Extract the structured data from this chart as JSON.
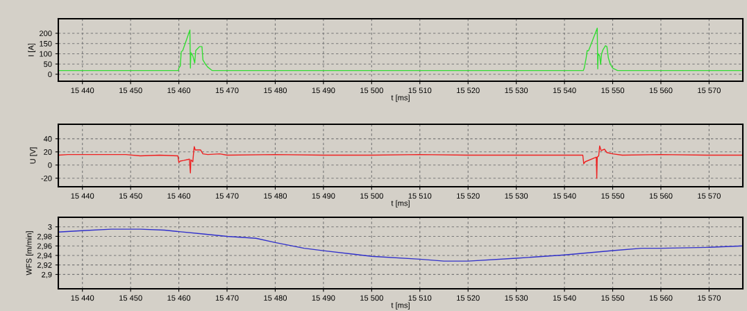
{
  "chart_data": [
    {
      "type": "line",
      "ylabel": "I [A]",
      "xlabel": "t [ms]",
      "xlim": [
        15435,
        15577
      ],
      "ylim": [
        -34,
        271
      ],
      "xticks": [
        {
          "value": 15440,
          "label": "15 440"
        },
        {
          "value": 15450,
          "label": "15 450"
        },
        {
          "value": 15460,
          "label": "15 460"
        },
        {
          "value": 15470,
          "label": "15 470"
        },
        {
          "value": 15480,
          "label": "15 480"
        },
        {
          "value": 15490,
          "label": "15 490"
        },
        {
          "value": 15500,
          "label": "15 500"
        },
        {
          "value": 15510,
          "label": "15 510"
        },
        {
          "value": 15520,
          "label": "15 520"
        },
        {
          "value": 15530,
          "label": "15 530"
        },
        {
          "value": 15540,
          "label": "15 540"
        },
        {
          "value": 15550,
          "label": "15 550"
        },
        {
          "value": 15560,
          "label": "15 560"
        },
        {
          "value": 15570,
          "label": "15 570"
        }
      ],
      "yticks": [
        0,
        50,
        100,
        150,
        200
      ],
      "grid": true,
      "line_style": "solid",
      "series": [
        {
          "color": "#33dd33",
          "x": [
            15435,
            15459.9,
            15460.0,
            15460.3,
            15460.5,
            15460.8,
            15462.3,
            15462.4,
            15462.5,
            15462.9,
            15463.3,
            15463.5,
            15463.9,
            15464.3,
            15464.8,
            15465.0,
            15465.5,
            15466.0,
            15466.8,
            15467.0,
            15543.9,
            15544.1,
            15544.5,
            15544.7,
            15545.0,
            15546.8,
            15546.9,
            15547.0,
            15547.3,
            15547.5,
            15547.7,
            15548.0,
            15548.5,
            15548.8,
            15549.1,
            15549.5,
            15550.0,
            15551.0,
            15577
          ],
          "values": [
            18,
            18,
            30,
            40,
            110,
            115,
            216,
            30,
            105,
            90,
            55,
            115,
            125,
            135,
            135,
            70,
            50,
            35,
            20,
            18,
            18,
            30,
            80,
            115,
            115,
            225,
            26,
            100,
            90,
            48,
            100,
            120,
            139,
            135,
            80,
            50,
            30,
            18,
            18
          ]
        }
      ]
    },
    {
      "type": "line",
      "ylabel": "U [V]",
      "xlabel": "t [ms]",
      "xlim": [
        15435,
        15577
      ],
      "ylim": [
        -33,
        62
      ],
      "xticks": [
        {
          "value": 15440,
          "label": "15 440"
        },
        {
          "value": 15450,
          "label": "15 450"
        },
        {
          "value": 15460,
          "label": "15 460"
        },
        {
          "value": 15470,
          "label": "15 470"
        },
        {
          "value": 15480,
          "label": "15 480"
        },
        {
          "value": 15490,
          "label": "15 490"
        },
        {
          "value": 15500,
          "label": "15 500"
        },
        {
          "value": 15510,
          "label": "15 510"
        },
        {
          "value": 15520,
          "label": "15 520"
        },
        {
          "value": 15530,
          "label": "15 530"
        },
        {
          "value": 15540,
          "label": "15 540"
        },
        {
          "value": 15550,
          "label": "15 550"
        },
        {
          "value": 15560,
          "label": "15 560"
        },
        {
          "value": 15570,
          "label": "15 570"
        }
      ],
      "yticks": [
        -20,
        0,
        20,
        40
      ],
      "grid": true,
      "line_style": "solid",
      "series": [
        {
          "color": "#ee2020",
          "x": [
            15435,
            15437,
            15449,
            15452,
            15456,
            15459.8,
            15460.0,
            15460.3,
            15461.0,
            15462.2,
            15462.4,
            15462.5,
            15462.9,
            15463.1,
            15463.2,
            15463.4,
            15464.5,
            15465.0,
            15466.0,
            15468.5,
            15470,
            15480,
            15490,
            15500,
            15510,
            15520,
            15530,
            15543.8,
            15544.0,
            15544.3,
            15546.6,
            15546.7,
            15546.8,
            15547.1,
            15547.3,
            15547.6,
            15548.3,
            15548.8,
            15550,
            15552,
            15560,
            15570,
            15577
          ],
          "values": [
            15,
            16,
            16,
            14,
            15,
            14,
            4,
            6,
            7,
            9,
            -12,
            8,
            5,
            22,
            28,
            23,
            23,
            17,
            16,
            17,
            15,
            16,
            15,
            15,
            16,
            15,
            15,
            15,
            2,
            5,
            12,
            -20,
            12,
            14,
            29,
            22,
            24,
            19,
            17,
            15,
            16,
            15,
            15
          ]
        }
      ]
    },
    {
      "type": "line",
      "ylabel": "WFS [m/min]",
      "xlabel": "t [ms]",
      "xlim": [
        15435,
        15577
      ],
      "ylim": [
        2.87,
        3.02
      ],
      "xticks": [
        {
          "value": 15440,
          "label": "15 440"
        },
        {
          "value": 15450,
          "label": "15 450"
        },
        {
          "value": 15460,
          "label": "15 460"
        },
        {
          "value": 15470,
          "label": "15 470"
        },
        {
          "value": 15480,
          "label": "15 480"
        },
        {
          "value": 15490,
          "label": "15 490"
        },
        {
          "value": 15500,
          "label": "15 500"
        },
        {
          "value": 15510,
          "label": "15 510"
        },
        {
          "value": 15520,
          "label": "15 520"
        },
        {
          "value": 15530,
          "label": "15 530"
        },
        {
          "value": 15540,
          "label": "15 540"
        },
        {
          "value": 15550,
          "label": "15 550"
        },
        {
          "value": 15560,
          "label": "15 560"
        },
        {
          "value": 15570,
          "label": "15 570"
        }
      ],
      "yticks": [
        {
          "value": 2.9,
          "label": "2,9"
        },
        {
          "value": 2.92,
          "label": "2,92"
        },
        {
          "value": 2.94,
          "label": "2,94"
        },
        {
          "value": 2.96,
          "label": "2,96"
        },
        {
          "value": 2.98,
          "label": "2,98"
        },
        {
          "value": 3,
          "label": "3"
        }
      ],
      "grid": true,
      "line_style": "solid",
      "series": [
        {
          "color": "#3030cc",
          "x": [
            15435,
            15440,
            15446,
            15452,
            15457,
            15460,
            15465,
            15470,
            15476,
            15480,
            15486,
            15490,
            15500,
            15510,
            15515,
            15520,
            15530,
            15540,
            15550,
            15556,
            15560,
            15570,
            15577
          ],
          "values": [
            2.989,
            2.992,
            2.995,
            2.995,
            2.993,
            2.99,
            2.985,
            2.98,
            2.976,
            2.967,
            2.955,
            2.95,
            2.938,
            2.932,
            2.928,
            2.928,
            2.934,
            2.941,
            2.95,
            2.955,
            2.955,
            2.957,
            2.96
          ]
        }
      ]
    }
  ]
}
